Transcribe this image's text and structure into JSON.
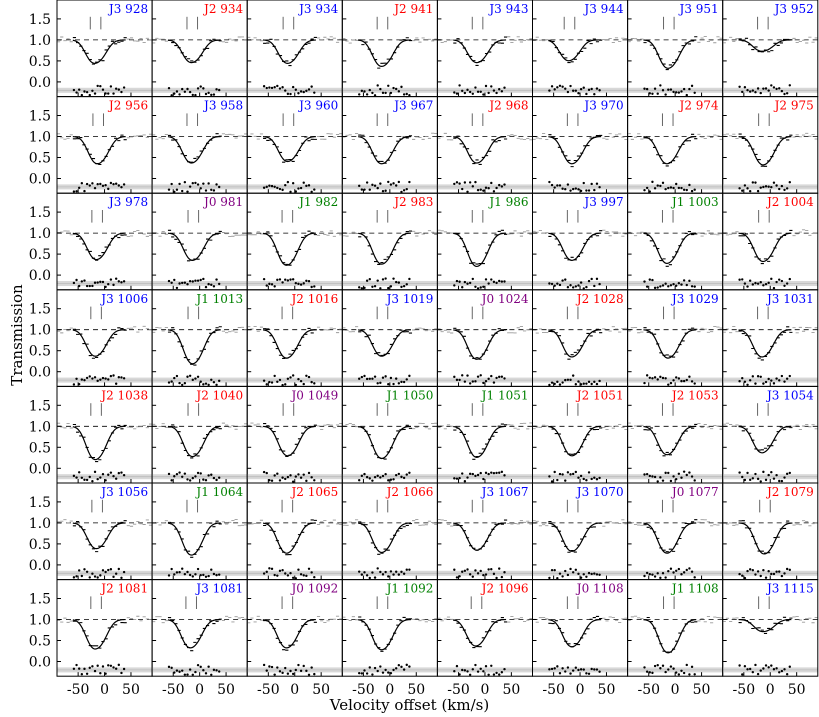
{
  "figure": {
    "ylabel": "Transmission",
    "xlabel": "Velocity offset (km/s)",
    "ytick_labels": [
      "1.5",
      "1.0",
      "0.5",
      "0.0"
    ],
    "xtick_labels": [
      "-50",
      "0",
      "50"
    ]
  },
  "colors": {
    "J0": "#800080",
    "J1": "#008000",
    "J2": "#ff0000",
    "J3": "#0000ff",
    "model": "#000000",
    "data_outside": "#999999",
    "residual_band": "#d8d8d8"
  },
  "chart_data": {
    "type": "line",
    "layout": "small-multiples grid, 7 rows x 8 columns, shared axes",
    "xlabel": "Velocity offset (km/s)",
    "ylabel": "Transmission",
    "xlim": [
      -90,
      90
    ],
    "ylim": [
      -0.35,
      1.95
    ],
    "xticks": [
      -50,
      0,
      50
    ],
    "yticks": [
      0.0,
      0.5,
      1.0,
      1.5
    ],
    "continuum_level": 1.0,
    "residual_level": -0.2,
    "component_marks_kms": [
      -20,
      0
    ],
    "panels": [
      {
        "label": "J3 928",
        "group": "J3",
        "depth": 0.62,
        "center": -15
      },
      {
        "label": "J2 934",
        "group": "J2",
        "depth": 0.6,
        "center": -12
      },
      {
        "label": "J3 934",
        "group": "J3",
        "depth": 0.62,
        "center": -10
      },
      {
        "label": "J2 941",
        "group": "J2",
        "depth": 0.7,
        "center": -12
      },
      {
        "label": "J3 943",
        "group": "J3",
        "depth": 0.6,
        "center": -12
      },
      {
        "label": "J3 944",
        "group": "J3",
        "depth": 0.55,
        "center": -18
      },
      {
        "label": "J3 951",
        "group": "J3",
        "depth": 0.75,
        "center": -10
      },
      {
        "label": "J3 952",
        "group": "J3",
        "depth": 0.3,
        "center": -12
      },
      {
        "label": "J2 956",
        "group": "J2",
        "depth": 0.72,
        "center": -10
      },
      {
        "label": "J3 958",
        "group": "J3",
        "depth": 0.7,
        "center": -12
      },
      {
        "label": "J3 960",
        "group": "J3",
        "depth": 0.66,
        "center": -10
      },
      {
        "label": "J3 967",
        "group": "J3",
        "depth": 0.72,
        "center": -12
      },
      {
        "label": "J2 968",
        "group": "J2",
        "depth": 0.7,
        "center": -12
      },
      {
        "label": "J3 970",
        "group": "J3",
        "depth": 0.72,
        "center": -12
      },
      {
        "label": "J2 974",
        "group": "J2",
        "depth": 0.72,
        "center": -12
      },
      {
        "label": "J2 975",
        "group": "J2",
        "depth": 0.75,
        "center": -10
      },
      {
        "label": "J3 978",
        "group": "J3",
        "depth": 0.7,
        "center": -12
      },
      {
        "label": "J0 981",
        "group": "J0",
        "depth": 0.72,
        "center": -10
      },
      {
        "label": "J1 982",
        "group": "J1",
        "depth": 0.85,
        "center": -12
      },
      {
        "label": "J2 983",
        "group": "J2",
        "depth": 0.82,
        "center": -12
      },
      {
        "label": "J1 986",
        "group": "J1",
        "depth": 0.88,
        "center": -12
      },
      {
        "label": "J3 997",
        "group": "J3",
        "depth": 0.72,
        "center": -12
      },
      {
        "label": "J1 1003",
        "group": "J1",
        "depth": 0.8,
        "center": -12
      },
      {
        "label": "J2 1004",
        "group": "J2",
        "depth": 0.75,
        "center": -10
      },
      {
        "label": "J3 1006",
        "group": "J3",
        "depth": 0.7,
        "center": -14
      },
      {
        "label": "J1 1013",
        "group": "J1",
        "depth": 0.9,
        "center": -10
      },
      {
        "label": "J2 1016",
        "group": "J2",
        "depth": 0.75,
        "center": -12
      },
      {
        "label": "J3 1019",
        "group": "J3",
        "depth": 0.7,
        "center": -12
      },
      {
        "label": "J0 1024",
        "group": "J0",
        "depth": 0.78,
        "center": -12
      },
      {
        "label": "J2 1028",
        "group": "J2",
        "depth": 0.72,
        "center": -12
      },
      {
        "label": "J3 1029",
        "group": "J3",
        "depth": 0.75,
        "center": -10
      },
      {
        "label": "J3 1031",
        "group": "J3",
        "depth": 0.72,
        "center": -12
      },
      {
        "label": "J2 1038",
        "group": "J2",
        "depth": 0.88,
        "center": -14
      },
      {
        "label": "J2 1040",
        "group": "J2",
        "depth": 0.8,
        "center": -10
      },
      {
        "label": "J0 1049",
        "group": "J0",
        "depth": 0.78,
        "center": -10
      },
      {
        "label": "J1 1050",
        "group": "J1",
        "depth": 0.85,
        "center": -12
      },
      {
        "label": "J1 1051",
        "group": "J1",
        "depth": 0.82,
        "center": -12
      },
      {
        "label": "J2 1051",
        "group": "J2",
        "depth": 0.78,
        "center": -12
      },
      {
        "label": "J2 1053",
        "group": "J2",
        "depth": 0.75,
        "center": -12
      },
      {
        "label": "J3 1054",
        "group": "J3",
        "depth": 0.7,
        "center": -12
      },
      {
        "label": "J3 1056",
        "group": "J3",
        "depth": 0.68,
        "center": -12
      },
      {
        "label": "J1 1064",
        "group": "J1",
        "depth": 0.85,
        "center": -12
      },
      {
        "label": "J2 1065",
        "group": "J2",
        "depth": 0.8,
        "center": -12
      },
      {
        "label": "J2 1066",
        "group": "J2",
        "depth": 0.78,
        "center": -12
      },
      {
        "label": "J3 1067",
        "group": "J3",
        "depth": 0.72,
        "center": -12
      },
      {
        "label": "J3 1070",
        "group": "J3",
        "depth": 0.75,
        "center": -12
      },
      {
        "label": "J0 1077",
        "group": "J0",
        "depth": 0.8,
        "center": -12
      },
      {
        "label": "J2 1079",
        "group": "J2",
        "depth": 0.82,
        "center": -8
      },
      {
        "label": "J2 1081",
        "group": "J2",
        "depth": 0.78,
        "center": -14
      },
      {
        "label": "J3 1081",
        "group": "J3",
        "depth": 0.75,
        "center": -14
      },
      {
        "label": "J0 1092",
        "group": "J0",
        "depth": 0.75,
        "center": -12
      },
      {
        "label": "J1 1092",
        "group": "J1",
        "depth": 0.8,
        "center": -12
      },
      {
        "label": "J2 1096",
        "group": "J2",
        "depth": 0.7,
        "center": -14
      },
      {
        "label": "J0 1108",
        "group": "J0",
        "depth": 0.72,
        "center": -12
      },
      {
        "label": "J1 1108",
        "group": "J1",
        "depth": 0.88,
        "center": -10
      },
      {
        "label": "J3 1115",
        "group": "J3",
        "depth": 0.32,
        "center": -10
      }
    ]
  }
}
